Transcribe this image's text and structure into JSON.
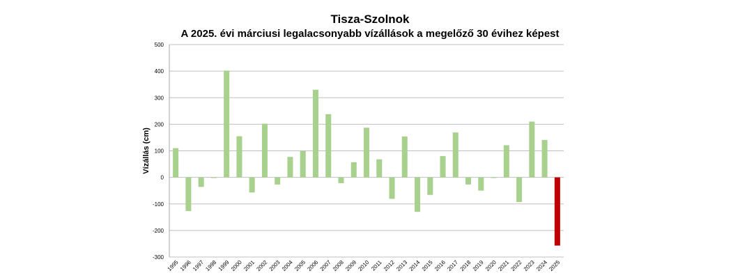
{
  "chart_data": {
    "type": "bar",
    "title": "Tisza-Szolnok",
    "subtitle": "A 2025. évi márciusi legalacsonyabb vízállások a megelőző 30 évihez képest",
    "xlabel": "",
    "ylabel": "Vízállás (cm)",
    "ylim": [
      -300,
      500
    ],
    "yticks": [
      -300,
      -200,
      -100,
      0,
      100,
      200,
      300,
      400,
      500
    ],
    "grid": true,
    "legend": "none",
    "categories": [
      "1995",
      "1996",
      "1997",
      "1998",
      "1999",
      "2000",
      "2001",
      "2002",
      "2003",
      "2004",
      "2005",
      "2006",
      "2007",
      "2008",
      "2009",
      "2010",
      "2011",
      "2012",
      "2013",
      "2014",
      "2015",
      "2016",
      "2017",
      "2018",
      "2019",
      "2020",
      "2021",
      "2022",
      "2023",
      "2024",
      "2025"
    ],
    "values": [
      110,
      -127,
      -36,
      0,
      402,
      155,
      -57,
      202,
      -27,
      77,
      99,
      330,
      238,
      -22,
      57,
      187,
      68,
      -81,
      154,
      -130,
      -66,
      80,
      169,
      -27,
      -50,
      -2,
      121,
      -93,
      210,
      141,
      -257
    ],
    "colors": {
      "default_bar": "#a9d18e",
      "highlight_bar": "#c00000",
      "grid": "#bfbfbf",
      "axis": "#a6a6a6"
    },
    "highlight_category": "2025"
  }
}
